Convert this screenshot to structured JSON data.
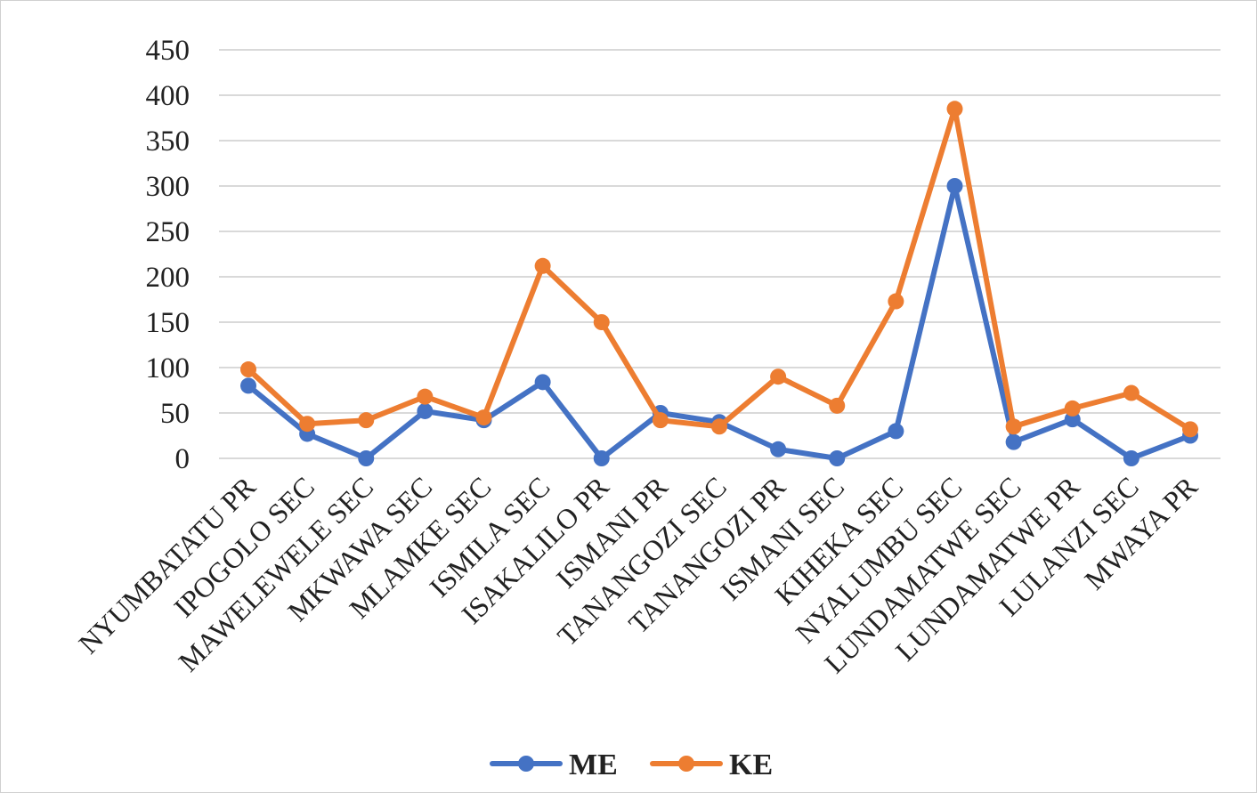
{
  "chart_data": {
    "type": "line",
    "title": "",
    "xlabel": "",
    "ylabel": "",
    "categories": [
      "NYUMBATATU PR",
      "IPOGOLO SEC",
      "MAWELEWELE SEC",
      "MKWAWA SEC",
      "MLAMKE SEC",
      "ISMILA SEC",
      "ISAKALILO PR",
      "ISMANI PR",
      "TANANGOZI SEC",
      "TANANGOZI PR",
      "ISMANI SEC",
      "KIHEKA SEC",
      "NYALUMBU SEC",
      "LUNDAMATWE SEC",
      "LUNDAMATWE PR",
      "LULANZI SEC",
      "MWAYA PR"
    ],
    "series": [
      {
        "name": "ME",
        "color": "#4472C4",
        "values": [
          80,
          27,
          0,
          52,
          42,
          84,
          0,
          50,
          40,
          10,
          0,
          30,
          300,
          18,
          43,
          0,
          25
        ]
      },
      {
        "name": "KE",
        "color": "#ED7D31",
        "values": [
          98,
          38,
          42,
          68,
          45,
          212,
          150,
          42,
          35,
          90,
          58,
          173,
          385,
          35,
          55,
          72,
          32
        ]
      }
    ],
    "ylim": [
      0,
      450
    ],
    "yticks": [
      0,
      50,
      100,
      150,
      200,
      250,
      300,
      350,
      400,
      450
    ],
    "grid": true,
    "legend_position": "bottom"
  }
}
